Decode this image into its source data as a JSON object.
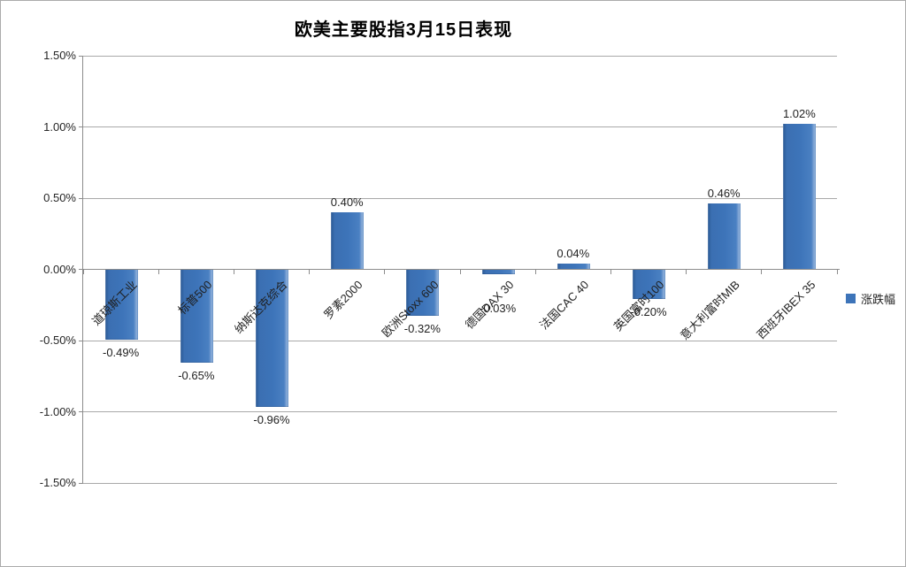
{
  "window": {
    "background": "#ffffff",
    "border_color": "#ababab"
  },
  "chart_data": {
    "type": "bar",
    "title": "欧美主要股指3月15日表现",
    "categories": [
      "道琼斯工业",
      "标普500",
      "纳斯达克综合",
      "罗素2000",
      "欧洲Stoxx 600",
      "德国DAX 30",
      "法国CAC 40",
      "英国富时100",
      "意大利富时MIB",
      "西班牙IBEX 35"
    ],
    "series": [
      {
        "name": "涨跌幅",
        "values": [
          -0.49,
          -0.65,
          -0.96,
          0.4,
          -0.32,
          -0.03,
          0.04,
          -0.2,
          0.46,
          1.02
        ],
        "data_labels": [
          "-0.49%",
          "-0.65%",
          "-0.96%",
          "0.40%",
          "-0.32%",
          "-0.03%",
          "0.04%",
          "-0.20%",
          "0.46%",
          "1.02%"
        ]
      }
    ],
    "ylabel": "",
    "xlabel": "",
    "ylim": [
      -1.5,
      1.5
    ],
    "ytick_interval": 0.5,
    "ytick_labels": [
      "1.50%",
      "1.00%",
      "0.50%",
      "0.00%",
      "-0.50%",
      "-1.00%",
      "-1.50%"
    ],
    "grid": true,
    "legend_position": "right",
    "colors": {
      "bar_main": "#3D74B9",
      "bar_edge_dark": "#2E5E9A",
      "bar_edge_light": "#8FB0DA",
      "gridline": "#a9a9a9",
      "axis": "#8c8c8c",
      "text": "#1f1f1f",
      "title": "#000000"
    }
  }
}
